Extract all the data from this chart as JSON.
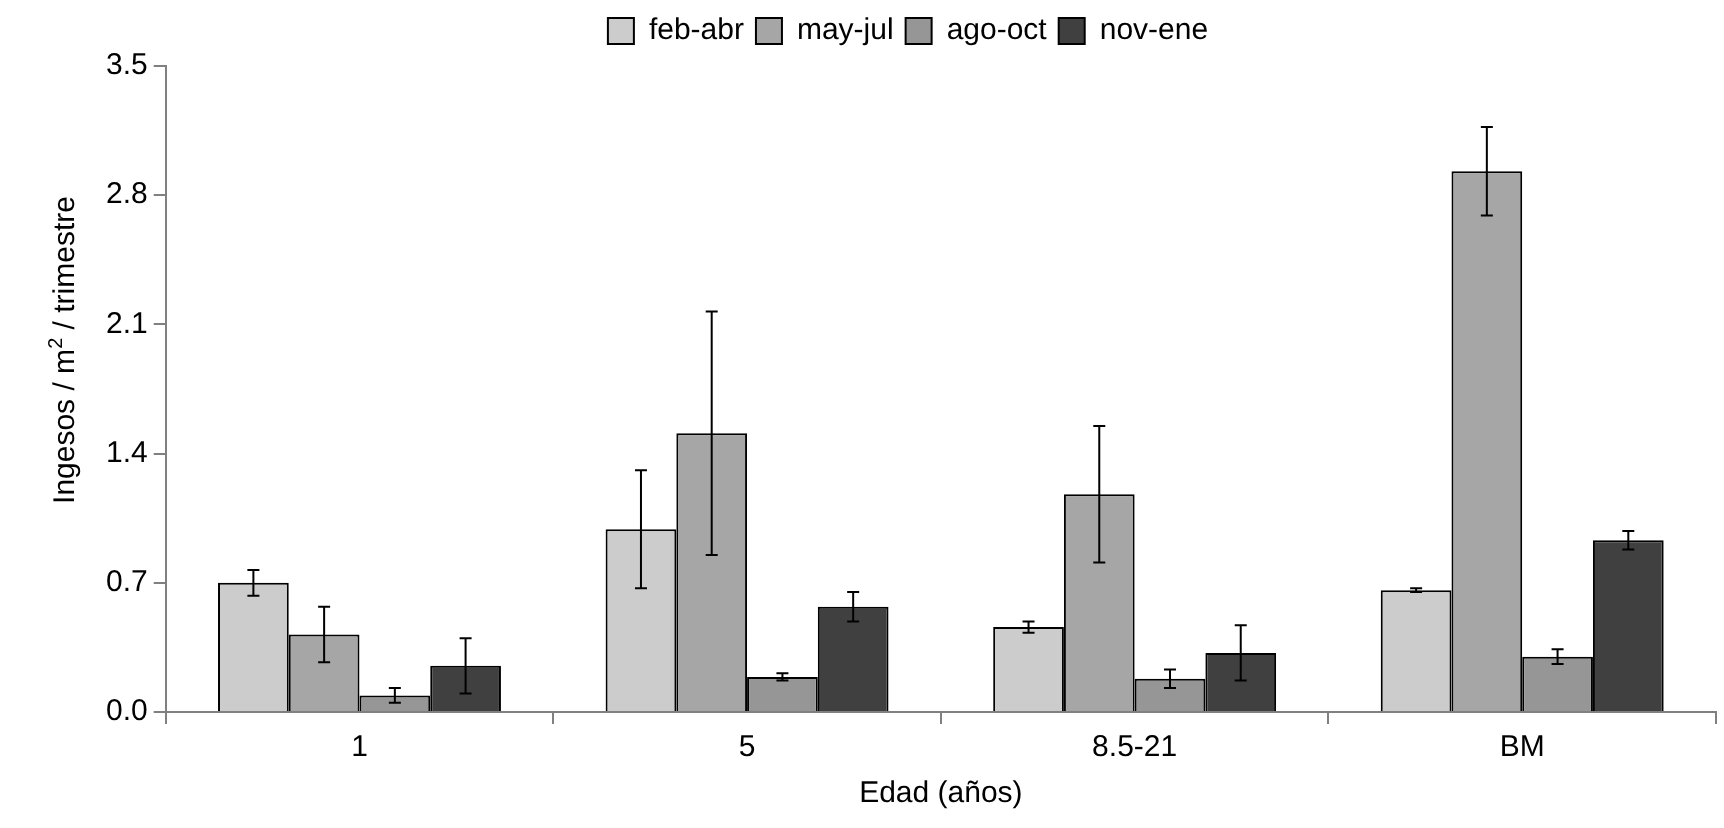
{
  "chart_data": {
    "type": "bar",
    "xlabel": "Edad (años)",
    "ylabel": "Ingesos / m$^{2}$ / trimestre",
    "categories": [
      "1",
      "5",
      "8.5-21",
      "BM"
    ],
    "series": [
      {
        "name": "feb-abr",
        "color": "#cccccc",
        "values": [
          0.7,
          0.99,
          0.46,
          0.66
        ],
        "errors": [
          0.07,
          0.32,
          0.03,
          0.01
        ]
      },
      {
        "name": "may-jul",
        "color": "#a6a6a6",
        "values": [
          0.42,
          1.51,
          1.18,
          2.93
        ],
        "errors": [
          0.15,
          0.66,
          0.37,
          0.24
        ]
      },
      {
        "name": "ago-oct",
        "color": "#969696",
        "values": [
          0.09,
          0.19,
          0.18,
          0.3
        ],
        "errors": [
          0.04,
          0.02,
          0.05,
          0.04
        ]
      },
      {
        "name": "nov-ene",
        "color": "#404040",
        "values": [
          0.25,
          0.57,
          0.32,
          0.93
        ],
        "errors": [
          0.15,
          0.08,
          0.15,
          0.05
        ]
      }
    ],
    "ylim": [
      0,
      3.5
    ],
    "yticks": [
      {
        "value": 0,
        "label": "0.0"
      },
      0.7,
      1.4,
      2.1,
      2.8,
      3.5
    ],
    "grid": false,
    "legend": "top"
  }
}
